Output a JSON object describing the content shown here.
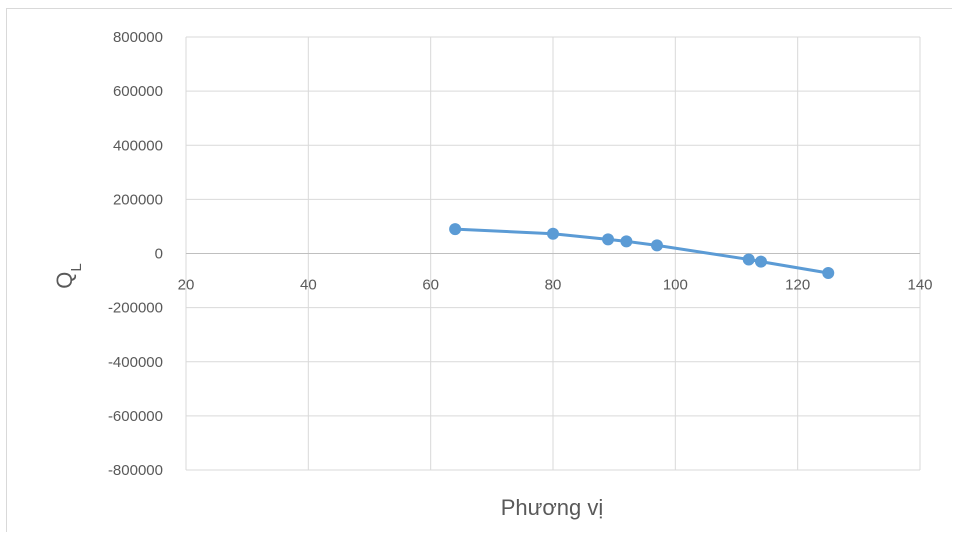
{
  "chart_data": {
    "type": "scatter",
    "xlabel": "Phương vị",
    "ylabel": "Q",
    "ylabel_subscript": "L",
    "xlim": [
      20,
      140
    ],
    "ylim": [
      -800000,
      800000
    ],
    "x_ticks": [
      20,
      40,
      60,
      80,
      100,
      120,
      140
    ],
    "y_ticks": [
      800000,
      600000,
      400000,
      200000,
      0,
      -200000,
      -400000,
      -600000,
      -800000
    ],
    "x_tick_labels": [
      "20",
      "40",
      "60",
      "80",
      "100",
      "120",
      "140"
    ],
    "y_tick_labels": [
      "800000",
      "600000",
      "400000",
      "200000",
      "0",
      "-200000",
      "-400000",
      "-600000",
      "-800000"
    ],
    "grid": true,
    "series": [
      {
        "color": "#5b9bd5",
        "x": [
          64,
          80,
          89,
          92,
          97,
          112,
          114,
          125
        ],
        "y": [
          90000,
          73000,
          52000,
          45000,
          30000,
          -22000,
          -30000,
          -72000
        ]
      }
    ]
  }
}
